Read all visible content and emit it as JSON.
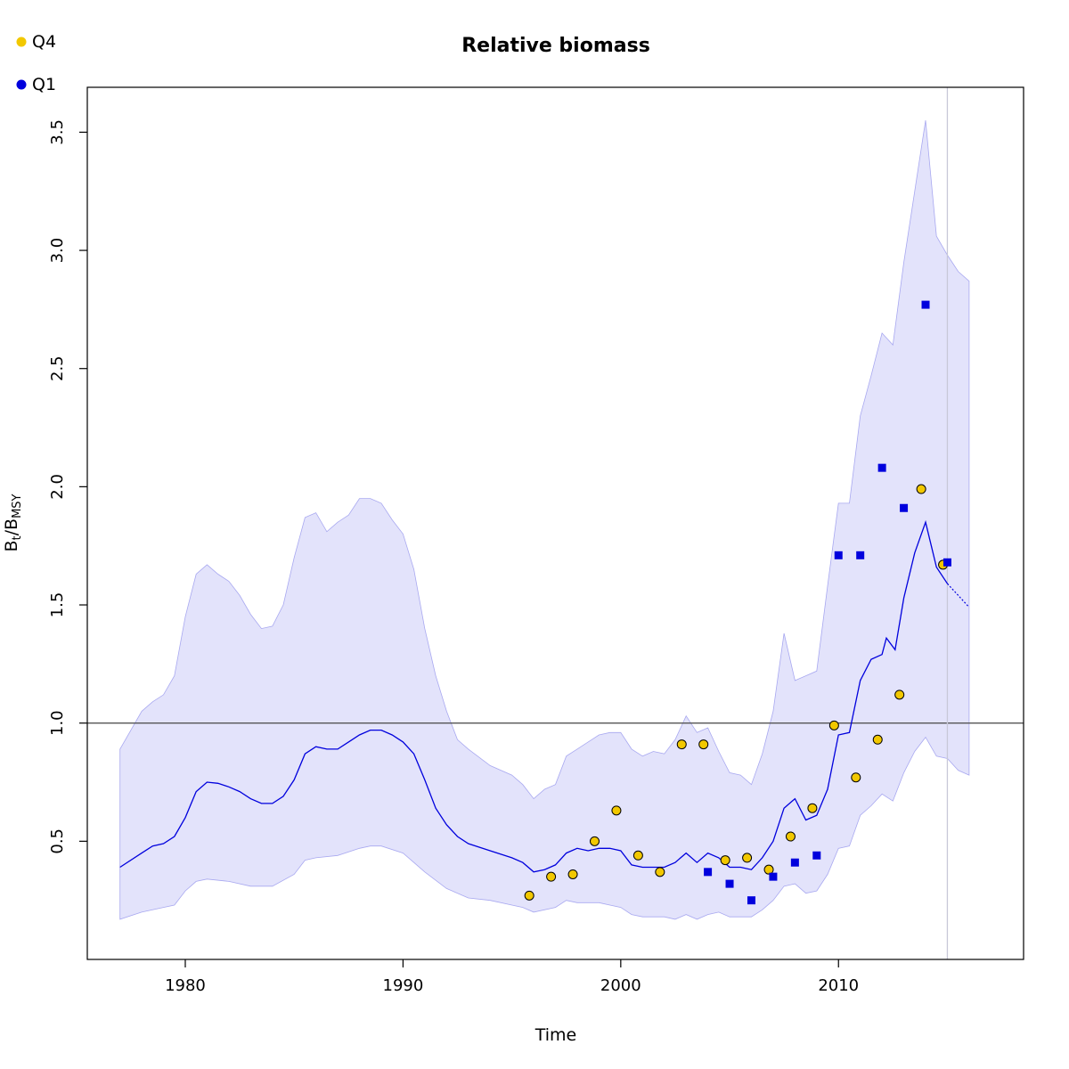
{
  "chart_data": {
    "type": "line",
    "title": "Relative biomass",
    "xlabel": "Time",
    "ylabel_main": "B",
    "ylabel_sub1": "t",
    "ylabel_mid": "/B",
    "ylabel_sub2": "MSY",
    "xlim": [
      1975.5,
      2018.5
    ],
    "ylim": [
      0.0,
      3.69
    ],
    "x_ticks": [
      1980,
      1990,
      2000,
      2010
    ],
    "x_tick_labels": [
      "1980",
      "1990",
      "2000",
      "2010"
    ],
    "y_ticks": [
      0.5,
      1.0,
      1.5,
      2.0,
      2.5,
      3.0,
      3.5
    ],
    "y_tick_labels": [
      "0.5",
      "1.0",
      "1.5",
      "2.0",
      "2.5",
      "3.0",
      "3.5"
    ],
    "reference_line_y": 1.0,
    "vertical_line_x": 2015,
    "colors": {
      "band_fill": "#e3e3fb",
      "band_edge": "#a8a8f0",
      "line": "#0000dd",
      "q4_fill": "#f2c800",
      "q1_fill": "#0000dd",
      "ref_line": "#555555",
      "vline": "#c8c8d8"
    },
    "legend": {
      "position": "top-left",
      "entries": [
        {
          "label": "Q4",
          "color": "#f2c800"
        },
        {
          "label": "Q1",
          "color": "#0000dd"
        }
      ]
    },
    "series": [
      {
        "name": "Q4",
        "marker": "circle",
        "points": [
          [
            1995.8,
            0.27
          ],
          [
            1996.8,
            0.35
          ],
          [
            1997.8,
            0.36
          ],
          [
            1998.8,
            0.5
          ],
          [
            1999.8,
            0.63
          ],
          [
            2000.8,
            0.44
          ],
          [
            2001.8,
            0.37
          ],
          [
            2002.8,
            0.91
          ],
          [
            2003.8,
            0.91
          ],
          [
            2004.8,
            0.42
          ],
          [
            2005.8,
            0.43
          ],
          [
            2006.8,
            0.38
          ],
          [
            2007.8,
            0.52
          ],
          [
            2008.8,
            0.64
          ],
          [
            2009.8,
            0.99
          ],
          [
            2010.8,
            0.77
          ],
          [
            2011.8,
            0.93
          ],
          [
            2012.8,
            1.12
          ],
          [
            2013.8,
            1.99
          ],
          [
            2014.8,
            1.67
          ]
        ]
      },
      {
        "name": "Q1",
        "marker": "square",
        "points": [
          [
            2004.0,
            0.37
          ],
          [
            2005.0,
            0.32
          ],
          [
            2006.0,
            0.25
          ],
          [
            2007.0,
            0.35
          ],
          [
            2008.0,
            0.41
          ],
          [
            2009.0,
            0.44
          ],
          [
            2010.0,
            1.71
          ],
          [
            2011.0,
            1.71
          ],
          [
            2012.0,
            2.08
          ],
          [
            2013.0,
            1.91
          ],
          [
            2014.0,
            2.77
          ],
          [
            2015.0,
            1.68
          ]
        ]
      }
    ],
    "estimate": [
      [
        1977.0,
        0.39
      ],
      [
        1978.0,
        0.45
      ],
      [
        1978.5,
        0.48
      ],
      [
        1979.0,
        0.49
      ],
      [
        1979.5,
        0.52
      ],
      [
        1980.0,
        0.6
      ],
      [
        1980.5,
        0.71
      ],
      [
        1981.0,
        0.75
      ],
      [
        1981.5,
        0.745
      ],
      [
        1982.0,
        0.73
      ],
      [
        1982.5,
        0.71
      ],
      [
        1983.0,
        0.68
      ],
      [
        1983.5,
        0.66
      ],
      [
        1984.0,
        0.66
      ],
      [
        1984.5,
        0.69
      ],
      [
        1985.0,
        0.76
      ],
      [
        1985.5,
        0.87
      ],
      [
        1986.0,
        0.9
      ],
      [
        1986.5,
        0.89
      ],
      [
        1987.0,
        0.89
      ],
      [
        1987.5,
        0.92
      ],
      [
        1988.0,
        0.95
      ],
      [
        1988.5,
        0.97
      ],
      [
        1989.0,
        0.97
      ],
      [
        1989.5,
        0.95
      ],
      [
        1990.0,
        0.92
      ],
      [
        1990.5,
        0.87
      ],
      [
        1991.0,
        0.76
      ],
      [
        1991.5,
        0.64
      ],
      [
        1992.0,
        0.57
      ],
      [
        1992.5,
        0.52
      ],
      [
        1993.0,
        0.49
      ],
      [
        1994.0,
        0.46
      ],
      [
        1995.0,
        0.43
      ],
      [
        1995.5,
        0.41
      ],
      [
        1996.0,
        0.37
      ],
      [
        1996.5,
        0.38
      ],
      [
        1997.0,
        0.4
      ],
      [
        1997.5,
        0.45
      ],
      [
        1998.0,
        0.47
      ],
      [
        1998.5,
        0.46
      ],
      [
        1999.0,
        0.47
      ],
      [
        1999.5,
        0.47
      ],
      [
        2000.0,
        0.46
      ],
      [
        2000.5,
        0.4
      ],
      [
        2001.0,
        0.39
      ],
      [
        2001.5,
        0.39
      ],
      [
        2002.0,
        0.39
      ],
      [
        2002.5,
        0.41
      ],
      [
        2003.0,
        0.45
      ],
      [
        2003.5,
        0.41
      ],
      [
        2004.0,
        0.45
      ],
      [
        2004.5,
        0.43
      ],
      [
        2005.0,
        0.39
      ],
      [
        2005.5,
        0.39
      ],
      [
        2006.0,
        0.38
      ],
      [
        2006.5,
        0.43
      ],
      [
        2007.0,
        0.5
      ],
      [
        2007.5,
        0.64
      ],
      [
        2008.0,
        0.68
      ],
      [
        2008.5,
        0.59
      ],
      [
        2009.0,
        0.61
      ],
      [
        2009.5,
        0.72
      ],
      [
        2010.0,
        0.95
      ],
      [
        2010.5,
        0.96
      ],
      [
        2011.0,
        1.18
      ],
      [
        2011.5,
        1.27
      ],
      [
        2012.0,
        1.29
      ],
      [
        2012.2,
        1.36
      ],
      [
        2012.6,
        1.31
      ],
      [
        2013.0,
        1.53
      ],
      [
        2013.5,
        1.72
      ],
      [
        2014.0,
        1.85
      ],
      [
        2014.5,
        1.66
      ],
      [
        2015.0,
        1.59
      ]
    ],
    "forecast": [
      [
        2015.0,
        1.59
      ],
      [
        2015.5,
        1.54
      ],
      [
        2016.0,
        1.49
      ]
    ],
    "ci_upper": [
      [
        1977.0,
        0.89
      ],
      [
        1978.0,
        1.05
      ],
      [
        1978.5,
        1.09
      ],
      [
        1979.0,
        1.12
      ],
      [
        1979.5,
        1.2
      ],
      [
        1980.0,
        1.45
      ],
      [
        1980.5,
        1.63
      ],
      [
        1981.0,
        1.67
      ],
      [
        1981.5,
        1.63
      ],
      [
        1982.0,
        1.6
      ],
      [
        1982.5,
        1.54
      ],
      [
        1983.0,
        1.46
      ],
      [
        1983.5,
        1.4
      ],
      [
        1984.0,
        1.41
      ],
      [
        1984.5,
        1.5
      ],
      [
        1985.0,
        1.7
      ],
      [
        1985.5,
        1.87
      ],
      [
        1986.0,
        1.89
      ],
      [
        1986.5,
        1.81
      ],
      [
        1987.0,
        1.85
      ],
      [
        1987.5,
        1.88
      ],
      [
        1988.0,
        1.95
      ],
      [
        1988.5,
        1.95
      ],
      [
        1989.0,
        1.93
      ],
      [
        1989.5,
        1.86
      ],
      [
        1990.0,
        1.8
      ],
      [
        1990.5,
        1.65
      ],
      [
        1991.0,
        1.4
      ],
      [
        1991.5,
        1.2
      ],
      [
        1992.0,
        1.05
      ],
      [
        1992.5,
        0.93
      ],
      [
        1993.0,
        0.89
      ],
      [
        1994.0,
        0.82
      ],
      [
        1995.0,
        0.78
      ],
      [
        1995.5,
        0.74
      ],
      [
        1996.0,
        0.68
      ],
      [
        1996.5,
        0.72
      ],
      [
        1997.0,
        0.74
      ],
      [
        1997.5,
        0.86
      ],
      [
        1998.0,
        0.89
      ],
      [
        1998.5,
        0.92
      ],
      [
        1999.0,
        0.95
      ],
      [
        1999.5,
        0.96
      ],
      [
        2000.0,
        0.96
      ],
      [
        2000.5,
        0.89
      ],
      [
        2001.0,
        0.86
      ],
      [
        2001.5,
        0.88
      ],
      [
        2002.0,
        0.87
      ],
      [
        2002.5,
        0.93
      ],
      [
        2003.0,
        1.03
      ],
      [
        2003.5,
        0.96
      ],
      [
        2004.0,
        0.98
      ],
      [
        2004.5,
        0.88
      ],
      [
        2005.0,
        0.79
      ],
      [
        2005.5,
        0.78
      ],
      [
        2006.0,
        0.74
      ],
      [
        2006.5,
        0.87
      ],
      [
        2007.0,
        1.05
      ],
      [
        2007.5,
        1.38
      ],
      [
        2008.0,
        1.18
      ],
      [
        2008.5,
        1.2
      ],
      [
        2009.0,
        1.22
      ],
      [
        2009.5,
        1.58
      ],
      [
        2010.0,
        1.93
      ],
      [
        2010.5,
        1.93
      ],
      [
        2011.0,
        2.3
      ],
      [
        2011.5,
        2.47
      ],
      [
        2012.0,
        2.65
      ],
      [
        2012.5,
        2.6
      ],
      [
        2013.0,
        2.95
      ],
      [
        2013.5,
        3.25
      ],
      [
        2014.0,
        3.55
      ],
      [
        2014.5,
        3.06
      ],
      [
        2015.0,
        2.98
      ],
      [
        2015.5,
        2.91
      ],
      [
        2016.0,
        2.87
      ]
    ],
    "ci_lower": [
      [
        1977.0,
        0.17
      ],
      [
        1978.0,
        0.2
      ],
      [
        1979.0,
        0.22
      ],
      [
        1979.5,
        0.23
      ],
      [
        1980.0,
        0.29
      ],
      [
        1980.5,
        0.33
      ],
      [
        1981.0,
        0.34
      ],
      [
        1982.0,
        0.33
      ],
      [
        1983.0,
        0.31
      ],
      [
        1984.0,
        0.31
      ],
      [
        1985.0,
        0.36
      ],
      [
        1985.5,
        0.42
      ],
      [
        1986.0,
        0.43
      ],
      [
        1987.0,
        0.44
      ],
      [
        1988.0,
        0.47
      ],
      [
        1988.5,
        0.48
      ],
      [
        1989.0,
        0.48
      ],
      [
        1990.0,
        0.45
      ],
      [
        1990.5,
        0.41
      ],
      [
        1991.0,
        0.37
      ],
      [
        1992.0,
        0.3
      ],
      [
        1993.0,
        0.26
      ],
      [
        1994.0,
        0.25
      ],
      [
        1995.0,
        0.23
      ],
      [
        1995.5,
        0.22
      ],
      [
        1996.0,
        0.2
      ],
      [
        1997.0,
        0.22
      ],
      [
        1997.5,
        0.25
      ],
      [
        1998.0,
        0.24
      ],
      [
        1999.0,
        0.24
      ],
      [
        1999.5,
        0.23
      ],
      [
        2000.0,
        0.22
      ],
      [
        2000.5,
        0.19
      ],
      [
        2001.0,
        0.18
      ],
      [
        2002.0,
        0.18
      ],
      [
        2002.5,
        0.17
      ],
      [
        2003.0,
        0.19
      ],
      [
        2003.5,
        0.17
      ],
      [
        2004.0,
        0.19
      ],
      [
        2004.5,
        0.2
      ],
      [
        2005.0,
        0.18
      ],
      [
        2006.0,
        0.18
      ],
      [
        2006.5,
        0.21
      ],
      [
        2007.0,
        0.25
      ],
      [
        2007.5,
        0.31
      ],
      [
        2008.0,
        0.32
      ],
      [
        2008.5,
        0.28
      ],
      [
        2009.0,
        0.29
      ],
      [
        2009.5,
        0.36
      ],
      [
        2010.0,
        0.47
      ],
      [
        2010.5,
        0.48
      ],
      [
        2011.0,
        0.61
      ],
      [
        2011.5,
        0.65
      ],
      [
        2012.0,
        0.7
      ],
      [
        2012.5,
        0.67
      ],
      [
        2013.0,
        0.79
      ],
      [
        2013.5,
        0.88
      ],
      [
        2014.0,
        0.94
      ],
      [
        2014.5,
        0.86
      ],
      [
        2015.0,
        0.85
      ],
      [
        2015.5,
        0.8
      ],
      [
        2016.0,
        0.78
      ]
    ]
  }
}
